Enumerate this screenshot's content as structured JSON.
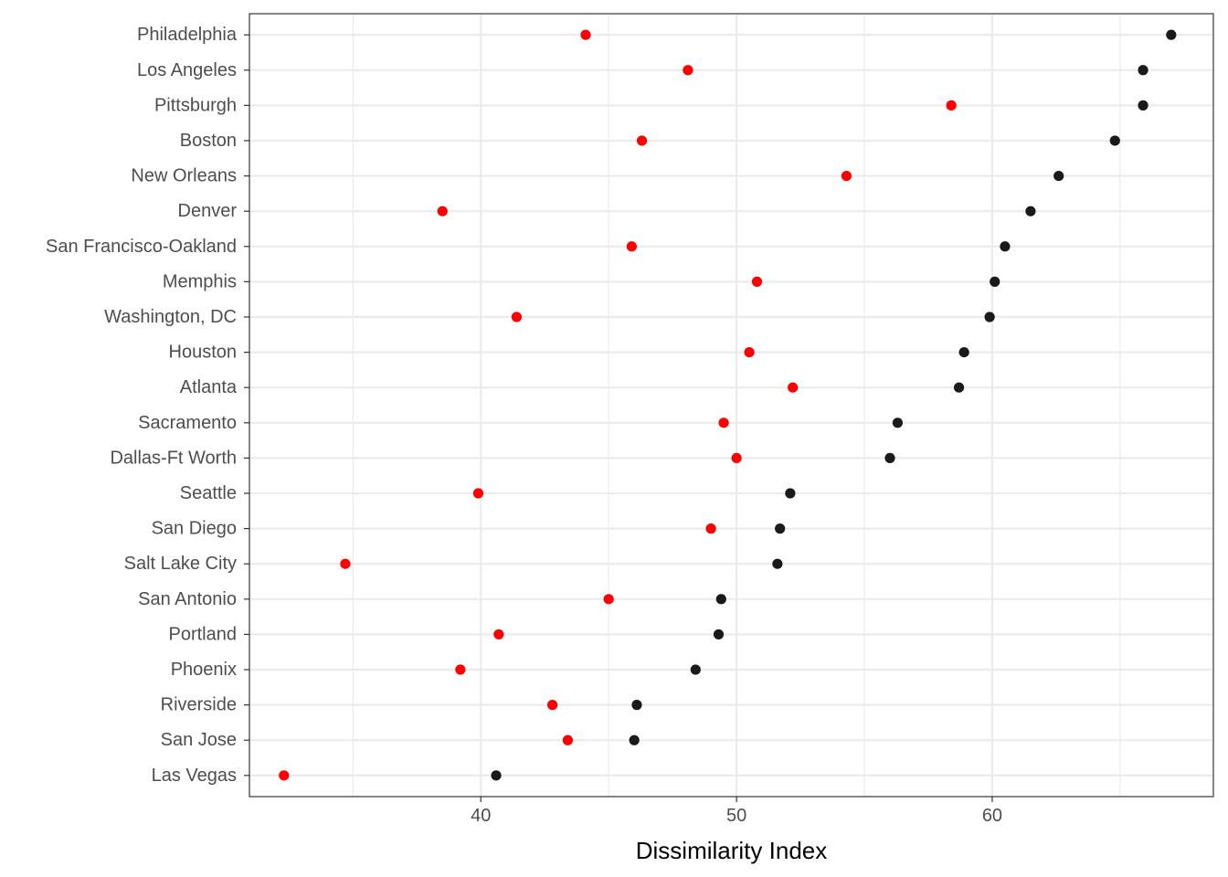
{
  "chart_data": {
    "type": "scatter",
    "title": "",
    "xlabel": "Dissimilarity Index",
    "ylabel": "",
    "xlim": [
      30.95,
      68.65
    ],
    "xticks": [
      40,
      50,
      60
    ],
    "grid": true,
    "legend": "none",
    "categories": [
      "Philadelphia",
      "Los Angeles",
      "Pittsburgh",
      "Boston",
      "New Orleans",
      "Denver",
      "San Francisco-Oakland",
      "Memphis",
      "Washington, DC",
      "Houston",
      "Atlanta",
      "Sacramento",
      "Dallas-Ft Worth",
      "Seattle",
      "San Diego",
      "Salt Lake City",
      "San Antonio",
      "Portland",
      "Phoenix",
      "Riverside",
      "San Jose",
      "Las Vegas"
    ],
    "series": [
      {
        "color": "#1a1a1a",
        "values": [
          67.0,
          65.9,
          65.9,
          64.8,
          62.6,
          61.5,
          60.5,
          60.1,
          59.9,
          58.9,
          58.7,
          56.3,
          56.0,
          52.1,
          51.7,
          51.6,
          49.4,
          49.3,
          48.4,
          46.1,
          46.0,
          40.6
        ]
      },
      {
        "color": "#ff0000",
        "values": [
          44.1,
          48.1,
          58.4,
          46.3,
          54.3,
          38.5,
          45.9,
          50.8,
          41.4,
          50.5,
          52.2,
          49.5,
          50.0,
          39.9,
          49.0,
          34.7,
          45.0,
          40.7,
          39.2,
          42.8,
          43.4,
          32.3
        ]
      }
    ]
  }
}
